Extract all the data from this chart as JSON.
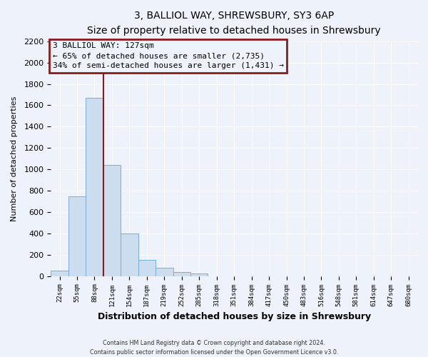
{
  "title": "3, BALLIOL WAY, SHREWSBURY, SY3 6AP",
  "subtitle": "Size of property relative to detached houses in Shrewsbury",
  "xlabel": "Distribution of detached houses by size in Shrewsbury",
  "ylabel": "Number of detached properties",
  "bar_labels": [
    "22sqm",
    "55sqm",
    "88sqm",
    "121sqm",
    "154sqm",
    "187sqm",
    "219sqm",
    "252sqm",
    "285sqm",
    "318sqm",
    "351sqm",
    "384sqm",
    "417sqm",
    "450sqm",
    "483sqm",
    "516sqm",
    "548sqm",
    "581sqm",
    "614sqm",
    "647sqm",
    "680sqm"
  ],
  "bar_values": [
    50,
    750,
    1670,
    1040,
    400,
    150,
    80,
    40,
    25,
    0,
    0,
    0,
    0,
    0,
    0,
    0,
    0,
    0,
    0,
    0,
    0
  ],
  "bar_color": "#ccddf0",
  "bar_edge_color": "#7aaed6",
  "ylim": [
    0,
    2200
  ],
  "yticks": [
    0,
    200,
    400,
    600,
    800,
    1000,
    1200,
    1400,
    1600,
    1800,
    2000,
    2200
  ],
  "annotation_title": "3 BALLIOL WAY: 127sqm",
  "annotation_line1": "← 65% of detached houses are smaller (2,735)",
  "annotation_line2": "34% of semi-detached houses are larger (1,431) →",
  "annotation_box_color": "#8b1a1a",
  "vline_color": "#8b1a1a",
  "footer_line1": "Contains HM Land Registry data © Crown copyright and database right 2024.",
  "footer_line2": "Contains public sector information licensed under the Open Government Licence v3.0.",
  "background_color": "#eef2fb",
  "grid_color": "#ffffff",
  "bin_width": 33,
  "n_bins": 21,
  "prop_bin_index": 3,
  "title_fontsize": 11,
  "subtitle_fontsize": 9
}
